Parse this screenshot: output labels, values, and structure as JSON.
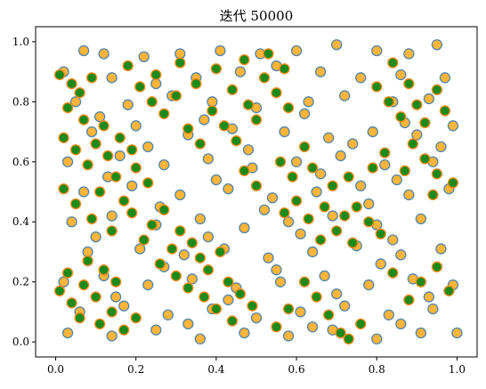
{
  "chart_data": {
    "type": "scatter",
    "title": "迭代 50000",
    "xlabel": "",
    "ylabel": "",
    "xlim": [
      -0.05,
      1.05
    ],
    "ylim": [
      -0.05,
      1.05
    ],
    "xticks": [
      0.0,
      0.2,
      0.4,
      0.6,
      0.8,
      1.0
    ],
    "yticks": [
      0.0,
      0.2,
      0.4,
      0.6,
      0.8,
      1.0
    ],
    "xtick_labels": [
      "0.0",
      "0.2",
      "0.4",
      "0.6",
      "0.8",
      "1.0"
    ],
    "ytick_labels": [
      "0.0",
      "0.2",
      "0.4",
      "0.6",
      "0.8",
      "1.0"
    ],
    "grid": false,
    "legend": "none",
    "colors": {
      "orange_fill": "#ffb43a",
      "orange_edge": "#4f86a8",
      "green_fill": "#1a8a1a",
      "green_edge": "#ff8a1a"
    },
    "series": [
      {
        "style": "orange",
        "points": [
          [
            0.07,
            0.97
          ],
          [
            0.12,
            0.96
          ],
          [
            0.22,
            0.95
          ],
          [
            0.31,
            0.96
          ],
          [
            0.41,
            0.97
          ],
          [
            0.51,
            0.96
          ],
          [
            0.6,
            0.97
          ],
          [
            0.7,
            0.99
          ],
          [
            0.8,
            0.97
          ],
          [
            0.88,
            0.96
          ],
          [
            0.95,
            0.99
          ],
          [
            0.02,
            0.9
          ],
          [
            0.14,
            0.88
          ],
          [
            0.25,
            0.86
          ],
          [
            0.35,
            0.88
          ],
          [
            0.46,
            0.9
          ],
          [
            0.55,
            0.92
          ],
          [
            0.66,
            0.9
          ],
          [
            0.76,
            0.88
          ],
          [
            0.86,
            0.89
          ],
          [
            0.97,
            0.88
          ],
          [
            0.05,
            0.8
          ],
          [
            0.18,
            0.79
          ],
          [
            0.29,
            0.82
          ],
          [
            0.39,
            0.8
          ],
          [
            0.5,
            0.78
          ],
          [
            0.63,
            0.8
          ],
          [
            0.72,
            0.82
          ],
          [
            0.84,
            0.8
          ],
          [
            0.93,
            0.81
          ],
          [
            0.09,
            0.7
          ],
          [
            0.2,
            0.72
          ],
          [
            0.33,
            0.69
          ],
          [
            0.44,
            0.71
          ],
          [
            0.57,
            0.7
          ],
          [
            0.68,
            0.68
          ],
          [
            0.79,
            0.7
          ],
          [
            0.9,
            0.69
          ],
          [
            0.99,
            0.72
          ],
          [
            0.03,
            0.6
          ],
          [
            0.16,
            0.62
          ],
          [
            0.27,
            0.59
          ],
          [
            0.38,
            0.61
          ],
          [
            0.49,
            0.58
          ],
          [
            0.6,
            0.6
          ],
          [
            0.71,
            0.62
          ],
          [
            0.82,
            0.59
          ],
          [
            0.94,
            0.6
          ],
          [
            0.07,
            0.5
          ],
          [
            0.19,
            0.52
          ],
          [
            0.31,
            0.49
          ],
          [
            0.43,
            0.51
          ],
          [
            0.54,
            0.48
          ],
          [
            0.65,
            0.5
          ],
          [
            0.76,
            0.52
          ],
          [
            0.88,
            0.49
          ],
          [
            0.98,
            0.51
          ],
          [
            0.04,
            0.4
          ],
          [
            0.14,
            0.42
          ],
          [
            0.25,
            0.39
          ],
          [
            0.36,
            0.41
          ],
          [
            0.47,
            0.38
          ],
          [
            0.58,
            0.4
          ],
          [
            0.69,
            0.42
          ],
          [
            0.8,
            0.39
          ],
          [
            0.91,
            0.41
          ],
          [
            0.08,
            0.3
          ],
          [
            0.21,
            0.31
          ],
          [
            0.32,
            0.29
          ],
          [
            0.42,
            0.31
          ],
          [
            0.53,
            0.28
          ],
          [
            0.64,
            0.3
          ],
          [
            0.75,
            0.32
          ],
          [
            0.86,
            0.29
          ],
          [
            0.96,
            0.31
          ],
          [
            0.02,
            0.2
          ],
          [
            0.12,
            0.22
          ],
          [
            0.23,
            0.19
          ],
          [
            0.34,
            0.21
          ],
          [
            0.45,
            0.18
          ],
          [
            0.56,
            0.2
          ],
          [
            0.67,
            0.22
          ],
          [
            0.78,
            0.19
          ],
          [
            0.89,
            0.21
          ],
          [
            0.99,
            0.19
          ],
          [
            0.06,
            0.1
          ],
          [
            0.17,
            0.12
          ],
          [
            0.28,
            0.09
          ],
          [
            0.39,
            0.11
          ],
          [
            0.5,
            0.08
          ],
          [
            0.61,
            0.1
          ],
          [
            0.72,
            0.12
          ],
          [
            0.83,
            0.09
          ],
          [
            0.94,
            0.11
          ],
          [
            0.03,
            0.03
          ],
          [
            0.14,
            0.02
          ],
          [
            0.25,
            0.04
          ],
          [
            0.36,
            0.01
          ],
          [
            0.47,
            0.03
          ],
          [
            0.58,
            0.02
          ],
          [
            0.69,
            0.04
          ],
          [
            0.8,
            0.01
          ],
          [
            0.91,
            0.03
          ],
          [
            1.0,
            0.03
          ],
          [
            0.11,
            0.75
          ],
          [
            0.37,
            0.74
          ],
          [
            0.62,
            0.76
          ],
          [
            0.87,
            0.73
          ],
          [
            0.23,
            0.65
          ],
          [
            0.48,
            0.64
          ],
          [
            0.74,
            0.66
          ],
          [
            0.96,
            0.65
          ],
          [
            0.13,
            0.55
          ],
          [
            0.4,
            0.54
          ],
          [
            0.66,
            0.56
          ],
          [
            0.85,
            0.54
          ],
          [
            0.26,
            0.45
          ],
          [
            0.52,
            0.44
          ],
          [
            0.78,
            0.46
          ],
          [
            0.1,
            0.35
          ],
          [
            0.38,
            0.35
          ],
          [
            0.61,
            0.36
          ],
          [
            0.84,
            0.34
          ],
          [
            0.27,
            0.25
          ],
          [
            0.55,
            0.24
          ],
          [
            0.81,
            0.26
          ],
          [
            0.15,
            0.15
          ],
          [
            0.43,
            0.14
          ],
          [
            0.7,
            0.16
          ],
          [
            0.93,
            0.15
          ],
          [
            0.33,
            0.06
          ],
          [
            0.64,
            0.05
          ],
          [
            0.86,
            0.06
          ]
        ]
      },
      {
        "style": "green",
        "points": [
          [
            0.01,
            0.89
          ],
          [
            0.04,
            0.86
          ],
          [
            0.06,
            0.83
          ],
          [
            0.09,
            0.88
          ],
          [
            0.03,
            0.78
          ],
          [
            0.07,
            0.74
          ],
          [
            0.02,
            0.68
          ],
          [
            0.05,
            0.64
          ],
          [
            0.1,
            0.66
          ],
          [
            0.08,
            0.59
          ],
          [
            0.13,
            0.62
          ],
          [
            0.15,
            0.55
          ],
          [
            0.11,
            0.5
          ],
          [
            0.17,
            0.47
          ],
          [
            0.2,
            0.58
          ],
          [
            0.23,
            0.53
          ],
          [
            0.19,
            0.43
          ],
          [
            0.24,
            0.39
          ],
          [
            0.27,
            0.44
          ],
          [
            0.22,
            0.34
          ],
          [
            0.29,
            0.31
          ],
          [
            0.26,
            0.26
          ],
          [
            0.31,
            0.37
          ],
          [
            0.34,
            0.33
          ],
          [
            0.3,
            0.22
          ],
          [
            0.36,
            0.28
          ],
          [
            0.33,
            0.18
          ],
          [
            0.38,
            0.24
          ],
          [
            0.41,
            0.3
          ],
          [
            0.37,
            0.15
          ],
          [
            0.43,
            0.2
          ],
          [
            0.4,
            0.11
          ],
          [
            0.46,
            0.16
          ],
          [
            0.44,
            0.07
          ],
          [
            0.49,
            0.12
          ],
          [
            0.18,
            0.92
          ],
          [
            0.21,
            0.85
          ],
          [
            0.24,
            0.8
          ],
          [
            0.27,
            0.76
          ],
          [
            0.25,
            0.89
          ],
          [
            0.3,
            0.82
          ],
          [
            0.33,
            0.71
          ],
          [
            0.36,
            0.66
          ],
          [
            0.31,
            0.93
          ],
          [
            0.35,
            0.86
          ],
          [
            0.39,
            0.77
          ],
          [
            0.42,
            0.72
          ],
          [
            0.45,
            0.67
          ],
          [
            0.4,
            0.91
          ],
          [
            0.44,
            0.84
          ],
          [
            0.48,
            0.79
          ],
          [
            0.5,
            0.74
          ],
          [
            0.47,
            0.94
          ],
          [
            0.52,
            0.88
          ],
          [
            0.55,
            0.83
          ],
          [
            0.58,
            0.78
          ],
          [
            0.53,
            0.96
          ],
          [
            0.57,
            0.91
          ],
          [
            0.8,
            0.85
          ],
          [
            0.83,
            0.8
          ],
          [
            0.86,
            0.75
          ],
          [
            0.84,
            0.93
          ],
          [
            0.88,
            0.86
          ],
          [
            0.9,
            0.79
          ],
          [
            0.92,
            0.73
          ],
          [
            0.95,
            0.84
          ],
          [
            0.97,
            0.77
          ],
          [
            0.89,
            0.66
          ],
          [
            0.92,
            0.61
          ],
          [
            0.95,
            0.56
          ],
          [
            0.87,
            0.57
          ],
          [
            0.99,
            0.53
          ],
          [
            0.94,
            0.49
          ],
          [
            0.82,
            0.63
          ],
          [
            0.79,
            0.58
          ],
          [
            0.7,
            0.37
          ],
          [
            0.74,
            0.33
          ],
          [
            0.72,
            0.42
          ],
          [
            0.67,
            0.45
          ],
          [
            0.63,
            0.41
          ],
          [
            0.66,
            0.34
          ],
          [
            0.6,
            0.47
          ],
          [
            0.57,
            0.43
          ],
          [
            0.75,
            0.45
          ],
          [
            0.78,
            0.4
          ],
          [
            0.81,
            0.36
          ],
          [
            0.69,
            0.52
          ],
          [
            0.73,
            0.55
          ],
          [
            0.01,
            0.17
          ],
          [
            0.04,
            0.13
          ],
          [
            0.07,
            0.19
          ],
          [
            0.1,
            0.15
          ],
          [
            0.12,
            0.24
          ],
          [
            0.15,
            0.2
          ],
          [
            0.08,
            0.27
          ],
          [
            0.03,
            0.23
          ],
          [
            0.11,
            0.06
          ],
          [
            0.14,
            0.1
          ],
          [
            0.17,
            0.04
          ],
          [
            0.2,
            0.08
          ],
          [
            0.06,
            0.08
          ],
          [
            0.05,
            0.46
          ],
          [
            0.09,
            0.41
          ],
          [
            0.02,
            0.51
          ],
          [
            0.14,
            0.37
          ],
          [
            0.12,
            0.72
          ],
          [
            0.16,
            0.68
          ],
          [
            0.19,
            0.64
          ],
          [
            0.56,
            0.6
          ],
          [
            0.59,
            0.55
          ],
          [
            0.62,
            0.65
          ],
          [
            0.64,
            0.58
          ],
          [
            0.5,
            0.52
          ],
          [
            0.47,
            0.57
          ],
          [
            0.91,
            0.2
          ],
          [
            0.95,
            0.25
          ],
          [
            0.98,
            0.17
          ],
          [
            0.84,
            0.23
          ],
          [
            0.88,
            0.14
          ],
          [
            0.62,
            0.2
          ],
          [
            0.65,
            0.15
          ],
          [
            0.68,
            0.09
          ],
          [
            0.71,
            0.03
          ],
          [
            0.73,
            0.01
          ],
          [
            0.76,
            0.06
          ],
          [
            0.55,
            0.05
          ],
          [
            0.58,
            0.11
          ]
        ]
      }
    ]
  }
}
